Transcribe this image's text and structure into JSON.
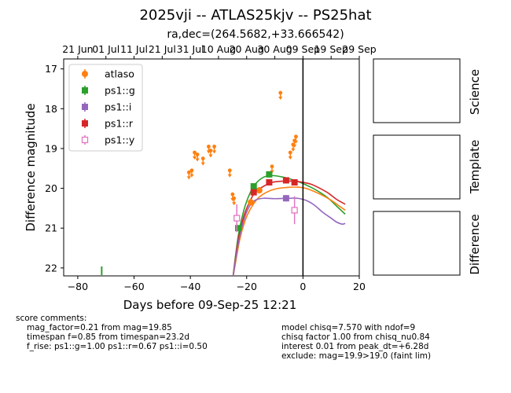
{
  "figure": {
    "title": "2025vji -- ATLAS25kjv -- PS25hat",
    "subtitle": "ra,dec=(264.5682,+33.666542)"
  },
  "chart_data": {
    "type": "scatter",
    "xlabel": "Days before 09-Sep-25 12:21",
    "ylabel": "Difference magnitude",
    "xlim": [
      -85,
      20
    ],
    "ylim": [
      22.2,
      16.75
    ],
    "y_inverted": true,
    "x_ticks": [
      -80,
      -60,
      -40,
      -20,
      0,
      20
    ],
    "y_ticks": [
      17,
      18,
      19,
      20,
      21,
      22
    ],
    "top_axis_ticks": [
      {
        "x": -80,
        "label": "21 Jun"
      },
      {
        "x": -70,
        "label": "01 Jul"
      },
      {
        "x": -60,
        "label": "11 Jul"
      },
      {
        "x": -50,
        "label": "21 Jul"
      },
      {
        "x": -40,
        "label": "31 Jul"
      },
      {
        "x": -30,
        "label": "10 Aug"
      },
      {
        "x": -20,
        "label": "20 Aug"
      },
      {
        "x": -10,
        "label": "30 Aug"
      },
      {
        "x": 0,
        "label": "09 Sep"
      },
      {
        "x": 10,
        "label": "19 Sep"
      },
      {
        "x": 20,
        "label": "29 Sep"
      }
    ],
    "vline_x": 0,
    "legend_position": "upper-left",
    "series": [
      {
        "name": "atlaso",
        "color": "#ff7f0e",
        "marker": "circle",
        "upper_limits": [
          [
            -40.5,
            19.6
          ],
          [
            -39.5,
            19.55
          ],
          [
            -38.5,
            19.1
          ],
          [
            -37.5,
            19.15
          ],
          [
            -35.5,
            19.25
          ],
          [
            -33.5,
            18.95
          ],
          [
            -32.8,
            19.05
          ],
          [
            -31.5,
            18.95
          ],
          [
            -26,
            19.55
          ],
          [
            -25,
            20.15
          ],
          [
            -24.5,
            20.25
          ],
          [
            -11,
            19.45
          ],
          [
            -8,
            17.6
          ],
          [
            -4.5,
            19.1
          ],
          [
            -3.5,
            18.9
          ],
          [
            -3,
            18.8
          ],
          [
            -2.5,
            18.7
          ]
        ],
        "points": [
          [
            -18.5,
            20.35,
            0.08
          ],
          [
            -15.5,
            20.05,
            0.08
          ]
        ]
      },
      {
        "name": "ps1::g",
        "color": "#2ca02c",
        "marker": "square",
        "points": [
          [
            -23,
            21.0,
            0.06
          ],
          [
            -17.5,
            19.95,
            0.05
          ],
          [
            -12,
            19.65,
            0.05
          ]
        ]
      },
      {
        "name": "ps1::i",
        "color": "#9467bd",
        "marker": "square",
        "points": [
          [
            -6,
            20.25,
            0.08
          ]
        ]
      },
      {
        "name": "ps1::r",
        "color": "#d62728",
        "marker": "square",
        "points": [
          [
            -17.5,
            20.1,
            0.05
          ],
          [
            -12,
            19.85,
            0.05
          ],
          [
            -6,
            19.8,
            0.05
          ],
          [
            -3,
            19.85,
            0.05
          ]
        ]
      },
      {
        "name": "ps1::y",
        "color": "#e377c2",
        "marker": "open-square",
        "points": [
          [
            -23.5,
            20.75,
            0.35
          ],
          [
            -3,
            20.55,
            0.35
          ]
        ]
      }
    ],
    "model_curves": [
      {
        "name": "ps1::g",
        "color": "#2ca02c",
        "points": [
          [
            -25,
            22.3
          ],
          [
            -23,
            21.2
          ],
          [
            -21,
            20.55
          ],
          [
            -19,
            20.15
          ],
          [
            -17,
            19.9
          ],
          [
            -14,
            19.72
          ],
          [
            -11,
            19.68
          ],
          [
            -7,
            19.72
          ],
          [
            -3,
            19.8
          ],
          [
            0,
            19.88
          ],
          [
            3,
            19.98
          ],
          [
            6,
            20.1
          ],
          [
            9,
            20.25
          ],
          [
            12,
            20.45
          ],
          [
            15,
            20.65
          ]
        ]
      },
      {
        "name": "ps1::r",
        "color": "#d62728",
        "points": [
          [
            -25,
            22.3
          ],
          [
            -23,
            21.3
          ],
          [
            -21,
            20.7
          ],
          [
            -19,
            20.35
          ],
          [
            -17,
            20.1
          ],
          [
            -14,
            19.95
          ],
          [
            -11,
            19.85
          ],
          [
            -7,
            19.82
          ],
          [
            -3,
            19.82
          ],
          [
            0,
            19.85
          ],
          [
            3,
            19.9
          ],
          [
            6,
            20.0
          ],
          [
            9,
            20.12
          ],
          [
            12,
            20.28
          ],
          [
            15,
            20.4
          ]
        ]
      },
      {
        "name": "atlaso",
        "color": "#ff7f0e",
        "points": [
          [
            -25,
            22.3
          ],
          [
            -22.5,
            21.3
          ],
          [
            -20.5,
            20.8
          ],
          [
            -18.5,
            20.5
          ],
          [
            -16,
            20.25
          ],
          [
            -13,
            20.1
          ],
          [
            -10,
            20.02
          ],
          [
            -6,
            19.98
          ],
          [
            -2,
            19.97
          ],
          [
            1,
            20.0
          ],
          [
            4,
            20.08
          ],
          [
            7,
            20.18
          ],
          [
            10,
            20.3
          ],
          [
            13,
            20.45
          ],
          [
            15,
            20.55
          ]
        ]
      },
      {
        "name": "ps1::i",
        "color": "#9467bd",
        "points": [
          [
            -25,
            22.3
          ],
          [
            -23,
            21.4
          ],
          [
            -21,
            20.8
          ],
          [
            -19,
            20.45
          ],
          [
            -17,
            20.3
          ],
          [
            -14,
            20.25
          ],
          [
            -10,
            20.26
          ],
          [
            -5,
            20.25
          ],
          [
            -2,
            20.25
          ],
          [
            1,
            20.3
          ],
          [
            4,
            20.42
          ],
          [
            7,
            20.6
          ],
          [
            10,
            20.75
          ],
          [
            12,
            20.85
          ],
          [
            14,
            20.9
          ],
          [
            15,
            20.88
          ]
        ]
      }
    ],
    "isolated_ticks": [
      {
        "x": -71.5,
        "color": "#2ca02c"
      }
    ]
  },
  "side_panels": [
    {
      "label": "Science"
    },
    {
      "label": "Template"
    },
    {
      "label": "Difference"
    }
  ],
  "comments": {
    "left_header": "score comments:",
    "left_lines": [
      "mag_factor=0.21 from mag=19.85",
      "timespan f=0.85 from timespan=23.2d",
      "f_rise: ps1::g=1.00 ps1::r=0.67 ps1::i=0.50"
    ],
    "right_lines": [
      "model chisq=7.570 with ndof=9",
      "chisq factor 1.00 from chisq_nu0.84",
      "interest 0.01 from peak_dt=+6.28d",
      "exclude: mag=19.9>19.0 (faint lim)"
    ]
  }
}
